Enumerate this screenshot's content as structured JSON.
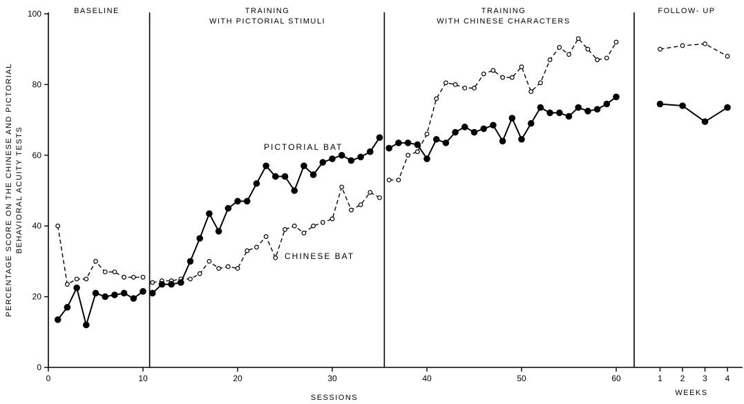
{
  "chart_data": {
    "type": "line",
    "ylabel_line1": "PERCENTAGE  SCORE  ON  THE  CHINESE  AND  PICTORIAL",
    "ylabel_line2": "BEHAVIORAL  ACUITY  TESTS",
    "xlabel": "SESSIONS",
    "xlabel_weeks": "WEEKS",
    "ylim": [
      0,
      100
    ],
    "xlim": [
      0,
      62.5
    ],
    "y_ticks": [
      "0",
      "20",
      "40",
      "60",
      "80",
      "100"
    ],
    "x_ticks": [
      "0",
      "10",
      "20",
      "30",
      "40",
      "50",
      "60"
    ],
    "week_ticks": [
      "1",
      "2",
      "3",
      "4"
    ],
    "phase_labels": {
      "baseline": "BASELINE",
      "training1_line1": "TRAINING",
      "training1_line2": "WITH PICTORIAL STIMULI",
      "training2_line1": "TRAINING",
      "training2_line2": "WITH CHINESE CHARACTERS",
      "followup": "FOLLOW- UP"
    },
    "phase_boundaries": [
      10.7,
      35.5
    ],
    "series": [
      {
        "name": "PICTORIAL BAT",
        "marker": "filled-circle",
        "line": "solid",
        "segments": [
          {
            "x": [
              1,
              2,
              3,
              4,
              5,
              6,
              7,
              8,
              9,
              10
            ],
            "y": [
              13.5,
              17,
              22.5,
              12,
              21,
              20,
              20.5,
              21,
              19.5,
              21.5
            ]
          },
          {
            "x": [
              11,
              12,
              13,
              14,
              15,
              16,
              17,
              18,
              19,
              20,
              21,
              22,
              23,
              24,
              25,
              26,
              27,
              28,
              29,
              30,
              31,
              32,
              33,
              34,
              35
            ],
            "y": [
              21,
              23.5,
              23.5,
              24,
              30,
              36.5,
              43.5,
              38.5,
              45,
              47,
              47,
              52,
              57,
              54,
              54,
              50,
              57,
              54.5,
              58,
              59,
              60,
              58.5,
              59.5,
              61,
              65
            ]
          },
          {
            "x": [
              36,
              37,
              38,
              39,
              40,
              41,
              42,
              43,
              44,
              45,
              46,
              47,
              48,
              49,
              50,
              51,
              52,
              53,
              54,
              55,
              56,
              57,
              58,
              59,
              60
            ],
            "y": [
              62,
              63.5,
              63.5,
              63,
              59,
              64.5,
              63.5,
              66.5,
              68,
              66.5,
              67.5,
              68.5,
              64,
              70.5,
              64.5,
              69,
              73.5,
              72,
              72,
              71,
              73.5,
              72.5,
              73,
              74.5,
              76.5
            ]
          }
        ],
        "followup": [
          74.5,
          74,
          69.5,
          73.5
        ]
      },
      {
        "name": "CHINESE BAT",
        "marker": "open-circle",
        "line": "dashed",
        "segments": [
          {
            "x": [
              1,
              2,
              3,
              4,
              5,
              6,
              7,
              8,
              9,
              10
            ],
            "y": [
              40,
              23.5,
              25,
              25,
              30,
              27,
              27,
              25.5,
              25.5,
              25.5
            ]
          },
          {
            "x": [
              11,
              12,
              13,
              14,
              15,
              16,
              17,
              18,
              19,
              20,
              21,
              22,
              23,
              24,
              25,
              26,
              27,
              28,
              29,
              30,
              31,
              32,
              33,
              34,
              35
            ],
            "y": [
              24,
              24.5,
              24.5,
              25,
              25,
              26.5,
              30,
              28,
              28.5,
              28,
              33,
              34,
              37,
              31,
              39,
              40,
              38,
              40,
              41,
              42,
              51,
              44.5,
              46,
              49.5,
              48
            ]
          },
          {
            "x": [
              36,
              37,
              38,
              39,
              40,
              41,
              42,
              43,
              44,
              45,
              46,
              47,
              48,
              49,
              50,
              51,
              52,
              53,
              54,
              55,
              56,
              57,
              58,
              59,
              60
            ],
            "y": [
              53,
              53,
              60,
              61,
              66,
              76,
              80.5,
              80,
              79,
              79,
              83,
              84,
              82,
              82,
              85,
              78,
              80.5,
              87,
              90.5,
              88.5,
              93,
              90,
              87,
              87.5,
              92
            ]
          }
        ],
        "followup": [
          90,
          91,
          91.5,
          88
        ]
      }
    ]
  }
}
